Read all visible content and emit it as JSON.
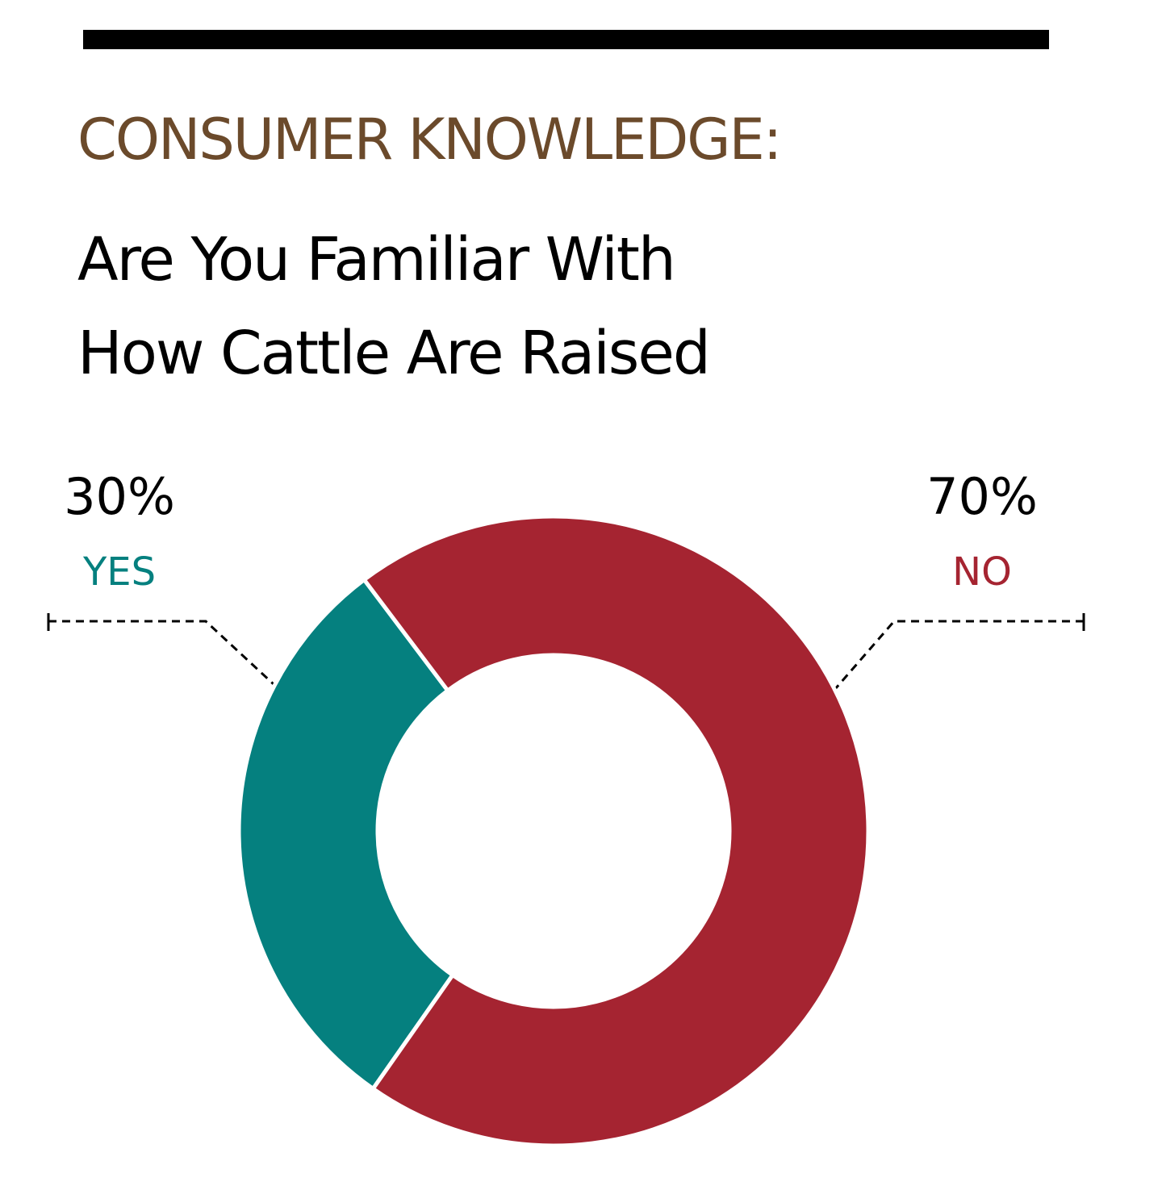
{
  "chart_data": {
    "type": "donut",
    "title": "CONSUMER KNOWLEDGE:",
    "subtitle": "Are You Familiar With How Cattle Are Raised",
    "categories": [
      "YES",
      "NO"
    ],
    "values": [
      30,
      70
    ],
    "value_labels": [
      "30%",
      "70%"
    ],
    "colors": [
      "#05807f",
      "#a52431"
    ]
  }
}
